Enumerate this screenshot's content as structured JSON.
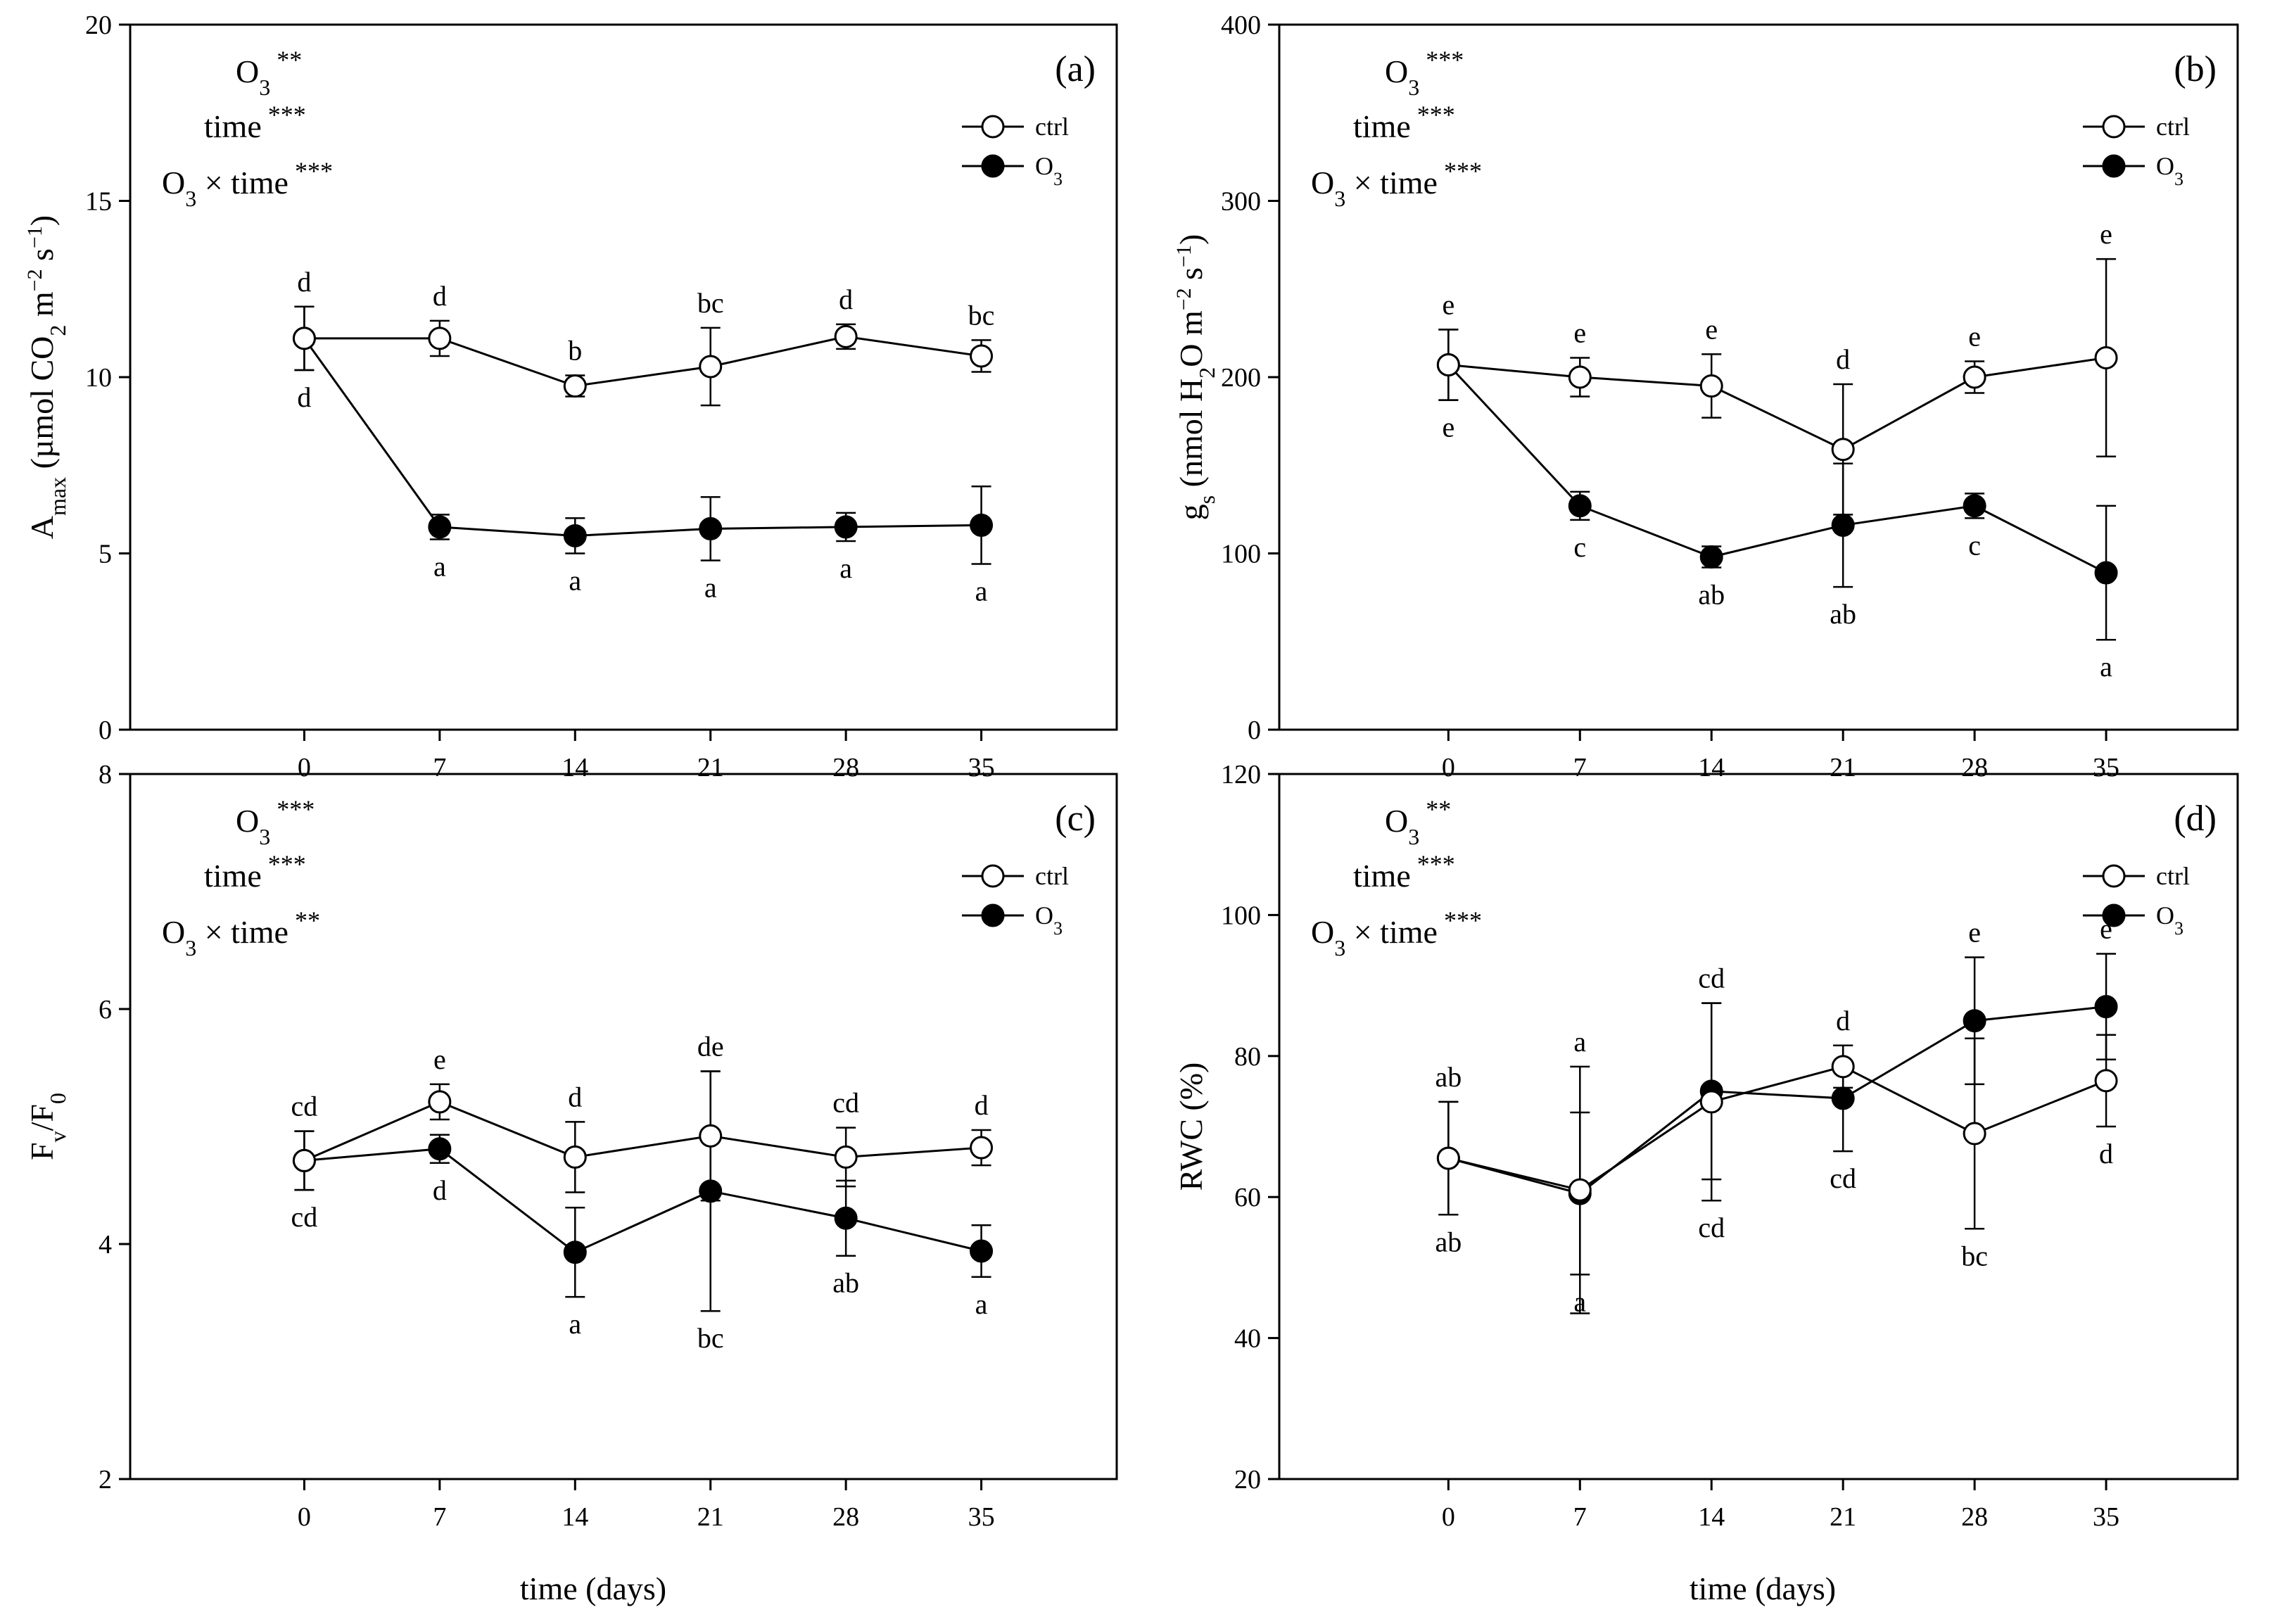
{
  "figure": {
    "xlabel": "time (days)",
    "legend": {
      "ctrl": "ctrl",
      "o3_main": "O",
      "o3_sub": "3"
    }
  },
  "chart_data": [
    {
      "id": "a",
      "type": "line",
      "panel_label": "(a)",
      "ylabel": "Amax (µmol CO2 m−2 s−1)",
      "ylabel_parts": [
        "A",
        "max",
        " (µmol CO",
        "2",
        " m",
        "−2",
        " s",
        "−1",
        ")"
      ],
      "xlabel": "",
      "x": [
        0,
        7,
        14,
        21,
        28,
        35
      ],
      "xlim": [
        -9,
        42
      ],
      "ylim": [
        0,
        20
      ],
      "yticks": [
        0,
        5,
        10,
        15,
        20
      ],
      "stats": [
        {
          "main": "O",
          "sub": "3",
          "stars": " **"
        },
        {
          "main": "time",
          "sub": "",
          "stars": " ***"
        },
        {
          "main": "O",
          "sub": "3",
          "suffix": " × time",
          "stars": " ***"
        }
      ],
      "series": [
        {
          "name": "ctrl",
          "fill": "white",
          "values": [
            11.1,
            11.1,
            9.75,
            10.3,
            11.15,
            10.6
          ],
          "err": [
            0.9,
            0.5,
            0.3,
            1.1,
            0.35,
            0.45
          ],
          "letters": [
            "d",
            "d",
            "b",
            "bc",
            "d",
            "bc"
          ],
          "letter_pos": "above"
        },
        {
          "name": "O3",
          "fill": "black",
          "values": [
            11.1,
            5.75,
            5.5,
            5.7,
            5.75,
            5.8
          ],
          "err": [
            0.9,
            0.35,
            0.5,
            0.9,
            0.4,
            1.1
          ],
          "letters": [
            "d",
            "a",
            "a",
            "a",
            "a",
            "a"
          ],
          "letter_pos": "below"
        }
      ]
    },
    {
      "id": "b",
      "type": "line",
      "panel_label": "(b)",
      "ylabel": "gs (nmol H2O m−2 s−1)",
      "ylabel_parts": [
        "g",
        "s",
        " (nmol H",
        "2",
        "O m",
        "−2",
        " s",
        "−1",
        ")"
      ],
      "xlabel": "",
      "x": [
        0,
        7,
        14,
        21,
        28,
        35
      ],
      "xlim": [
        -9,
        42
      ],
      "ylim": [
        0,
        400
      ],
      "yticks": [
        0,
        100,
        200,
        300,
        400
      ],
      "stats": [
        {
          "main": "O",
          "sub": "3",
          "stars": " ***"
        },
        {
          "main": "time",
          "sub": "",
          "stars": " ***"
        },
        {
          "main": "O",
          "sub": "3",
          "suffix": " × time",
          "stars": " ***"
        }
      ],
      "series": [
        {
          "name": "ctrl",
          "fill": "white",
          "values": [
            207,
            200,
            195,
            159,
            200,
            211
          ],
          "err": [
            20,
            11,
            18,
            37,
            9,
            56
          ],
          "letters": [
            "e",
            "e",
            "e",
            "d",
            "e",
            "e"
          ],
          "letter_pos": "above"
        },
        {
          "name": "O3",
          "fill": "black",
          "values": [
            207,
            127,
            98,
            116,
            127,
            89
          ],
          "err": [
            20,
            8,
            6,
            35,
            7,
            38
          ],
          "letters": [
            "e",
            "c",
            "ab",
            "ab",
            "c",
            "a"
          ],
          "letter_pos": "below"
        }
      ]
    },
    {
      "id": "c",
      "type": "line",
      "panel_label": "(c)",
      "ylabel": "Fv/F0",
      "ylabel_parts": [
        "F",
        "v",
        "/F",
        "0"
      ],
      "xlabel": "time (days)",
      "x": [
        0,
        7,
        14,
        21,
        28,
        35
      ],
      "xlim": [
        -9,
        42
      ],
      "ylim": [
        2,
        8
      ],
      "yticks": [
        2,
        4,
        6,
        8
      ],
      "stats": [
        {
          "main": "O",
          "sub": "3",
          "stars": " ***"
        },
        {
          "main": "time",
          "sub": "",
          "stars": " ***"
        },
        {
          "main": "O",
          "sub": "3",
          "suffix": " × time",
          "stars": " **"
        }
      ],
      "series": [
        {
          "name": "ctrl",
          "fill": "white",
          "values": [
            4.71,
            5.21,
            4.74,
            4.92,
            4.74,
            4.82
          ],
          "err": [
            0.25,
            0.15,
            0.3,
            0.55,
            0.25,
            0.15
          ],
          "letters": [
            "cd",
            "e",
            "d",
            "de",
            "cd",
            "d"
          ],
          "letter_pos": "above"
        },
        {
          "name": "O3",
          "fill": "black",
          "values": [
            4.71,
            4.81,
            3.93,
            4.45,
            4.22,
            3.94
          ],
          "err": [
            0.25,
            0.12,
            0.38,
            1.02,
            0.32,
            0.22
          ],
          "letters": [
            "cd",
            "d",
            "a",
            "bc",
            "ab",
            "a"
          ],
          "letter_pos": "below"
        }
      ]
    },
    {
      "id": "d",
      "type": "line",
      "panel_label": "(d)",
      "ylabel": "RWC (%)",
      "ylabel_parts": [
        "RWC (%)"
      ],
      "xlabel": "time (days)",
      "x": [
        0,
        7,
        14,
        21,
        28,
        35
      ],
      "xlim": [
        -9,
        42
      ],
      "ylim": [
        20,
        120
      ],
      "yticks": [
        20,
        40,
        60,
        80,
        100,
        120
      ],
      "stats": [
        {
          "main": "O",
          "sub": "3",
          "stars": " **"
        },
        {
          "main": "time",
          "sub": "",
          "stars": " ***"
        },
        {
          "main": "O",
          "sub": "3",
          "suffix": " × time",
          "stars": " ***"
        }
      ],
      "series": [
        {
          "name": "ctrl",
          "fill": "white",
          "values": [
            65.5,
            61.0,
            73.5,
            78.5,
            69.0,
            76.5
          ],
          "err": [
            8,
            17.5,
            14,
            3,
            13.5,
            6.5
          ],
          "letters": [
            "ab",
            "a",
            "cd",
            "d",
            "bc",
            "d"
          ],
          "letter_pos": "outer"
        },
        {
          "name": "O3",
          "fill": "black",
          "values": [
            65.5,
            60.5,
            75.0,
            74.0,
            85.0,
            87.0
          ],
          "err": [
            8,
            11.5,
            12.5,
            7.5,
            9,
            7.5
          ],
          "letters": [
            "ab",
            "a",
            "cd",
            "cd",
            "e",
            "e"
          ],
          "letter_pos": "outer"
        }
      ]
    }
  ]
}
